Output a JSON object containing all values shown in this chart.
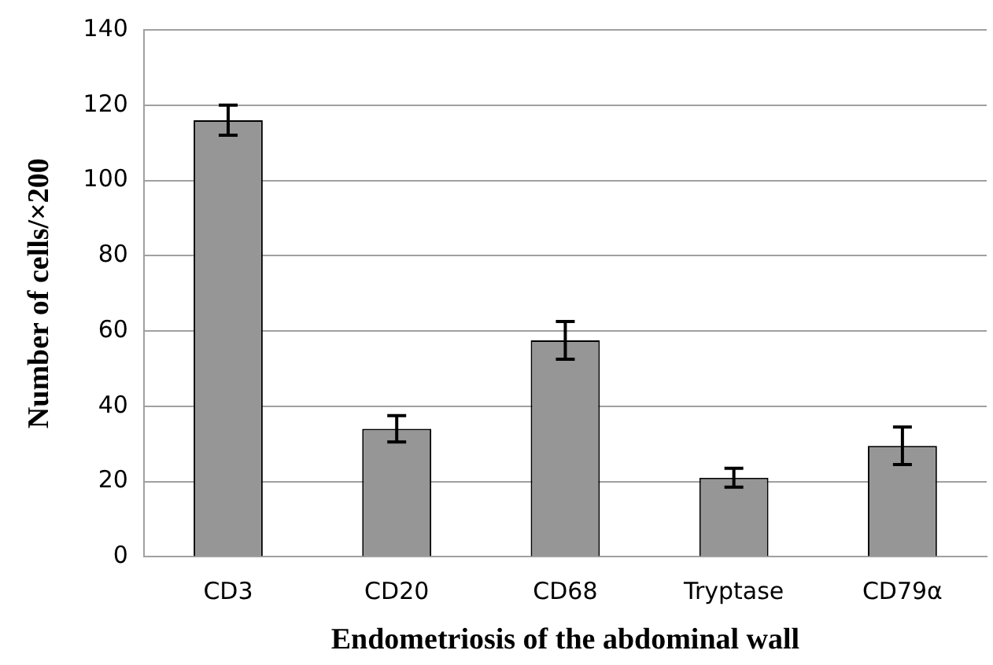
{
  "chart_data": {
    "type": "bar",
    "xlabel": "Endometriosis of the abdominal wall",
    "ylabel": "Number of cells/×200",
    "categories": [
      "CD3",
      "CD20",
      "CD68",
      "Tryptase",
      "CD79α"
    ],
    "values": [
      116,
      34,
      57.5,
      21,
      29.5
    ],
    "errors": [
      4,
      3.5,
      5,
      2.5,
      5
    ],
    "color": "#969696",
    "ylim": [
      0,
      140
    ],
    "yticks": [
      0,
      20,
      40,
      60,
      80,
      100,
      120,
      140
    ],
    "grid": "y"
  }
}
